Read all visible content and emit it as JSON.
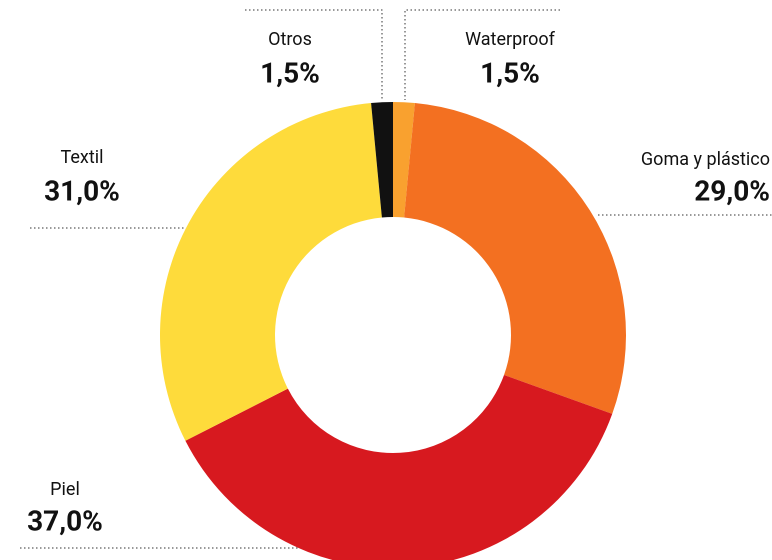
{
  "chart_data": {
    "type": "donut",
    "categories": [
      "Waterproof",
      "Goma y plástico",
      "Piel",
      "Textil",
      "Otros"
    ],
    "values": [
      1.5,
      29.0,
      37.0,
      31.0,
      1.5
    ],
    "value_labels": [
      "1,5%",
      "29,0%",
      "37,0%",
      "31,0%",
      "1,5%"
    ],
    "colors": [
      "#f9a12f",
      "#f37021",
      "#d7191f",
      "#fedb3b",
      "#111111"
    ]
  }
}
